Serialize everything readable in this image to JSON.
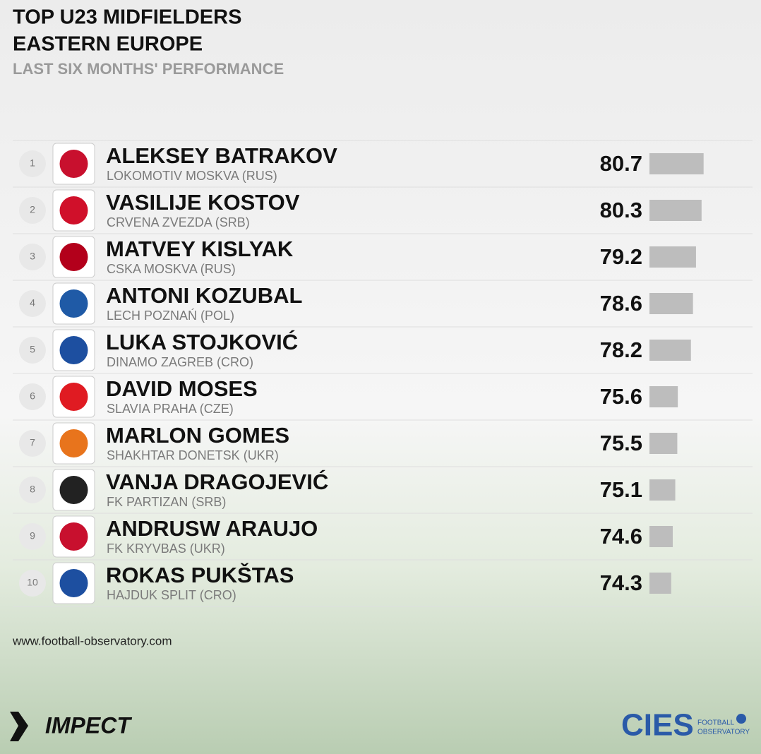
{
  "chart_data": {
    "type": "bar",
    "title": [
      "TOP U23 MIDFIELDERS",
      "EASTERN EUROPE"
    ],
    "subtitle": "LAST SIX MONTHS' PERFORMANCE",
    "ranks": [
      1,
      2,
      3,
      4,
      5,
      6,
      7,
      8,
      9,
      10
    ],
    "categories": [
      "ALEKSEY BATRAKOV",
      "VASILIJE KOSTOV",
      "MATVEY KISLYAK",
      "ANTONI KOZUBAL",
      "LUKA STOJKOVIĆ",
      "DAVID MOSES",
      "MARLON GOMES",
      "VANJA DRAGOJEVIĆ",
      "ANDRUSW ARAUJO",
      "ROKAS PUKŠTAS"
    ],
    "clubs": [
      "LOKOMOTIV MOSKVA (RUS)",
      "CRVENA ZVEZDA (SRB)",
      "CSKA MOSKVA (RUS)",
      "LECH POZNAŃ (POL)",
      "DINAMO ZAGREB (CRO)",
      "SLAVIA PRAHA (CZE)",
      "SHAKHTAR DONETSK (UKR)",
      "FK PARTIZAN (SRB)",
      "FK KRYVBAS (UKR)",
      "HAJDUK SPLIT (CRO)"
    ],
    "values": [
      80.7,
      80.3,
      79.2,
      78.6,
      78.2,
      75.6,
      75.5,
      75.1,
      74.6,
      74.3
    ],
    "color": "#bdbdbd",
    "xlim": [
      70,
      82
    ],
    "source": "www.football-observatory.com",
    "brand_left": "IMPECT",
    "brand_right": "CIES",
    "brand_right_sub": [
      "FOOTBALL",
      "OBSERVATORY"
    ]
  }
}
